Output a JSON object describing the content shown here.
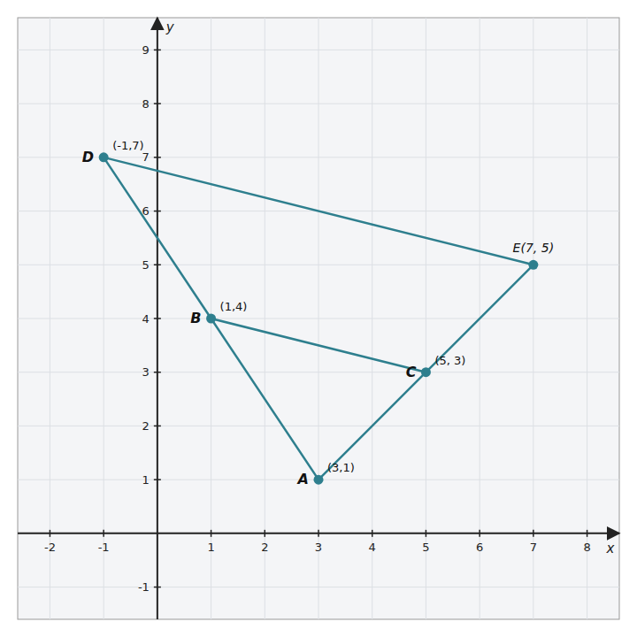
{
  "chart_data": {
    "type": "scatter",
    "xlabel": "x",
    "ylabel": "y",
    "x": [
      3,
      1,
      5,
      -1,
      7
    ],
    "values": [
      1,
      4,
      3,
      7,
      5
    ],
    "annotations": [
      [
        "A",
        "(3,1)"
      ],
      [
        "B",
        "(1,4)"
      ],
      [
        "C",
        "(5, 3)"
      ],
      [
        "D",
        "(-1,7)"
      ],
      [
        "E(7, 5)"
      ]
    ],
    "edges": [
      [
        3,
        4
      ],
      [
        3,
        1
      ],
      [
        1,
        0
      ],
      [
        1,
        2
      ],
      [
        0,
        2
      ],
      [
        2,
        4
      ]
    ],
    "color": "#2e7f8e",
    "xlim": [
      -2.6,
      8.6
    ],
    "ylim": [
      -1.6,
      9.6
    ],
    "xticks": [
      -2,
      -1,
      1,
      2,
      3,
      4,
      5,
      6,
      7,
      8
    ],
    "yticks": [
      -1,
      1,
      2,
      3,
      4,
      5,
      6,
      7,
      8,
      9
    ],
    "grid": true
  }
}
